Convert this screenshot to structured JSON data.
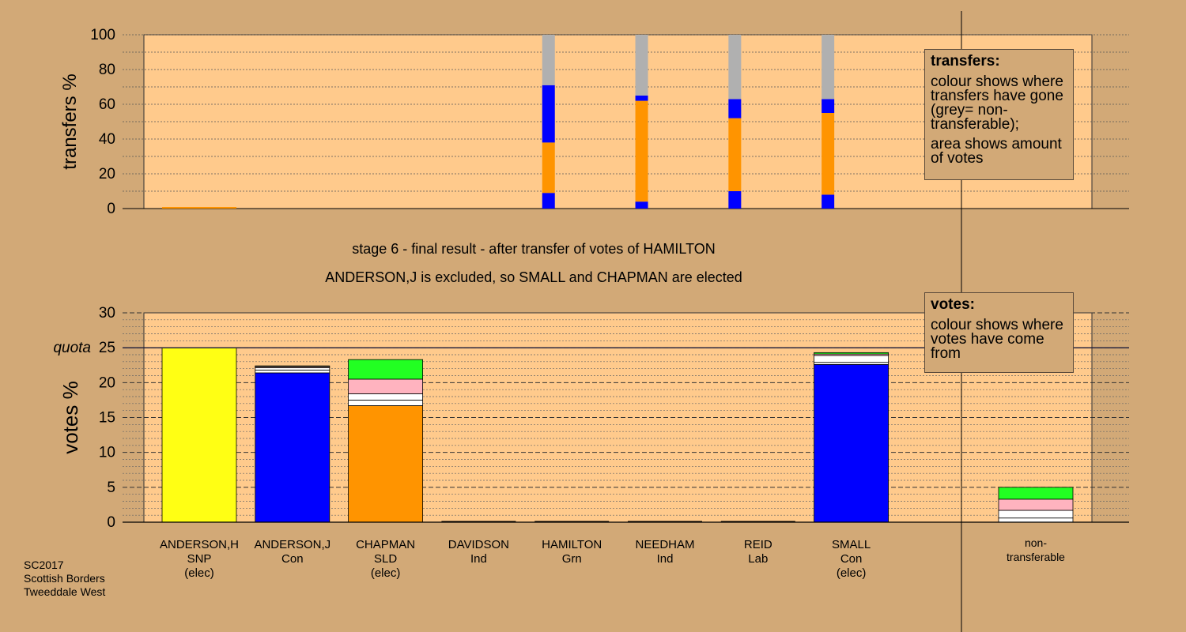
{
  "chart_data": {
    "type": "bar",
    "subtype": "stacked",
    "title": "stage 6 - final result - after transfer of votes of HAMILTON",
    "subtitle": "ANDERSON,J is excluded, so SMALL and CHAPMAN are elected",
    "colors": {
      "background": "#d2a977",
      "plot_background": "#ffca8c",
      "SNP": "#ffff14",
      "Con": "#0000ff",
      "SLD": "#ff9400",
      "Ind": "#ffffff",
      "Grn": "#22ff22",
      "Lab": "#ffb3bf",
      "non_transferable": "#b0b0b0"
    },
    "categories": [
      {
        "name": "ANDERSON,H",
        "party": "SNP",
        "status": "(elec)"
      },
      {
        "name": "ANDERSON,J",
        "party": "Con",
        "status": ""
      },
      {
        "name": "CHAPMAN",
        "party": "SLD",
        "status": "(elec)"
      },
      {
        "name": "DAVIDSON",
        "party": "Ind",
        "status": ""
      },
      {
        "name": "HAMILTON",
        "party": "Grn",
        "status": ""
      },
      {
        "name": "NEEDHAM",
        "party": "Ind",
        "status": ""
      },
      {
        "name": "REID",
        "party": "Lab",
        "status": ""
      },
      {
        "name": "SMALL",
        "party": "Con",
        "status": "(elec)"
      }
    ],
    "nontransferable_label": [
      "non-",
      "transferable"
    ],
    "transfers": {
      "ylabel": "transfers %",
      "ylim": [
        0,
        100
      ],
      "yticks": [
        0,
        20,
        40,
        60,
        80,
        100
      ],
      "bars": [
        {
          "source": "ANDERSON,J",
          "position": 3.75,
          "segments": [
            {
              "color": "Con",
              "value": 9
            },
            {
              "color": "SLD",
              "value": 29
            },
            {
              "color": "Con",
              "value": 33
            },
            {
              "color": "non_transferable",
              "value": 29
            }
          ]
        },
        {
          "source": "DAVIDSON",
          "position": 4.75,
          "segments": [
            {
              "color": "Con",
              "value": 4
            },
            {
              "color": "SLD",
              "value": 58
            },
            {
              "color": "Con",
              "value": 3
            },
            {
              "color": "non_transferable",
              "value": 35
            }
          ]
        },
        {
          "source": "NEEDHAM",
          "position": 5.75,
          "segments": [
            {
              "color": "Con",
              "value": 10
            },
            {
              "color": "SLD",
              "value": 42
            },
            {
              "color": "Con",
              "value": 11
            },
            {
              "color": "non_transferable",
              "value": 37
            }
          ]
        },
        {
          "source": "HAMILTON",
          "position": 6.75,
          "segments": [
            {
              "color": "Con",
              "value": 8
            },
            {
              "color": "SLD",
              "value": 47
            },
            {
              "color": "Con",
              "value": 8
            },
            {
              "color": "non_transferable",
              "value": 37
            }
          ]
        }
      ]
    },
    "votes": {
      "ylabel": "votes %",
      "ylim": [
        0,
        30
      ],
      "yticks": [
        0,
        5,
        10,
        15,
        20,
        25,
        30
      ],
      "quota": 25,
      "quota_label": "quota",
      "stacks": [
        [
          {
            "color": "SNP",
            "value": 25
          }
        ],
        [
          {
            "color": "Con",
            "value": 21.4
          },
          {
            "color": "Ind",
            "value": 0.4
          },
          {
            "color": "Ind",
            "value": 0.35
          },
          {
            "color": "Lab",
            "value": 0.15
          },
          {
            "color": "Grn",
            "value": 0.1
          }
        ],
        [
          {
            "color": "SLD",
            "value": 16.7
          },
          {
            "color": "Ind",
            "value": 0.8
          },
          {
            "color": "Ind",
            "value": 0.9
          },
          {
            "color": "Lab",
            "value": 2.1
          },
          {
            "color": "Grn",
            "value": 2.8
          }
        ],
        [],
        [],
        [],
        [],
        [
          {
            "color": "Con",
            "value": 22.6
          },
          {
            "color": "Ind",
            "value": 0.3
          },
          {
            "color": "Ind",
            "value": 1.0
          },
          {
            "color": "Lab",
            "value": 0.2
          },
          {
            "color": "Grn",
            "value": 0.2
          }
        ],
        [
          {
            "color": "Ind",
            "value": 0.6
          },
          {
            "color": "Ind",
            "value": 1.1
          },
          {
            "color": "Lab",
            "value": 1.6
          },
          {
            "color": "Grn",
            "value": 1.7
          }
        ]
      ]
    }
  },
  "legend_transfers": {
    "title": "transfers:",
    "line1": "colour shows where transfers have gone (grey= non-transferable);",
    "line2": "area shows amount of votes"
  },
  "legend_votes": {
    "title": "votes:",
    "line1": "colour shows where votes have come from"
  },
  "footer": {
    "line1": "SC2017",
    "line2": "Scottish Borders",
    "line3": "Tweeddale West"
  }
}
